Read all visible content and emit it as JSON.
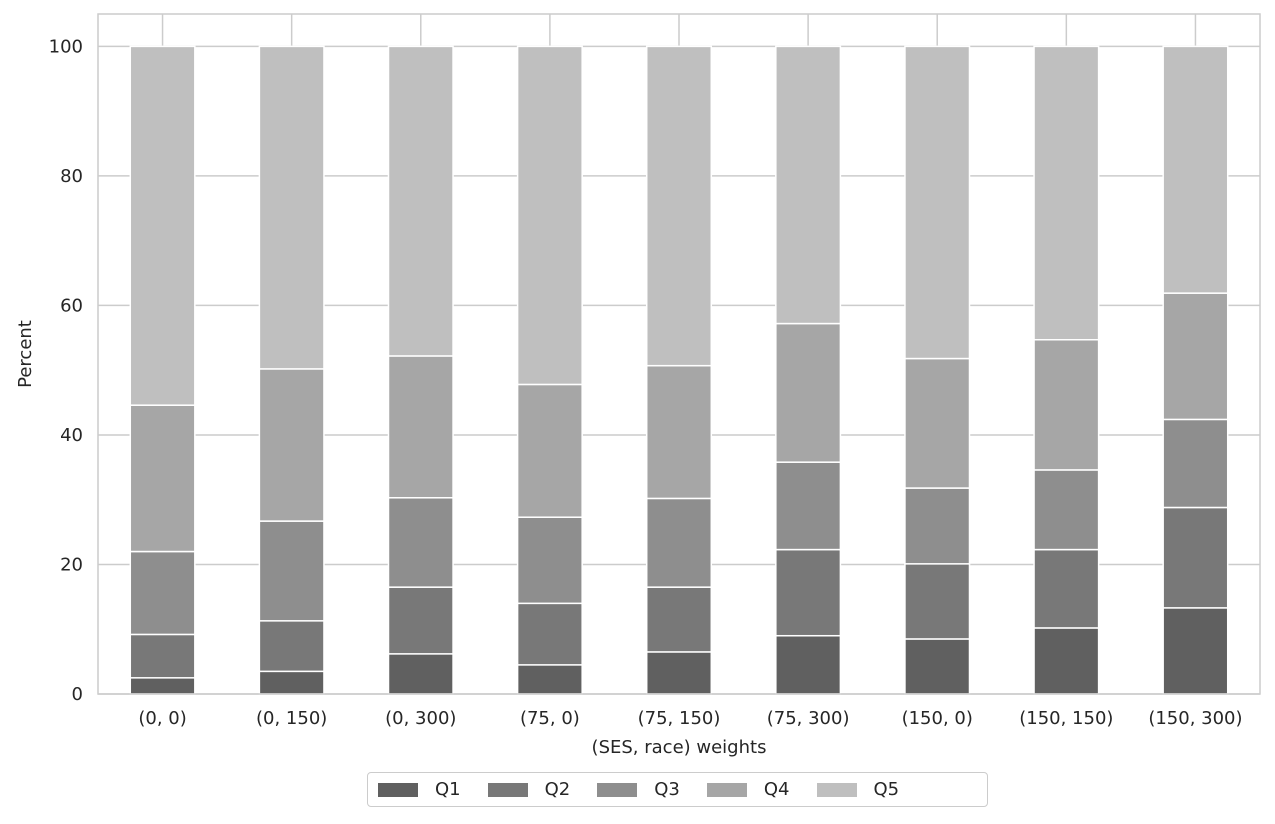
{
  "chart_data": {
    "type": "bar",
    "stacked": true,
    "xlabel": "(SES, race) weights",
    "ylabel": "Percent",
    "ylim": [
      0,
      105
    ],
    "yticks": [
      0,
      20,
      40,
      60,
      80,
      100
    ],
    "grid": true,
    "legend_position": "bottom-center",
    "categories": [
      "(0, 0)",
      "(0, 150)",
      "(0, 300)",
      "(75, 0)",
      "(75, 150)",
      "(75, 300)",
      "(150, 0)",
      "(150, 150)",
      "(150, 300)"
    ],
    "series": [
      {
        "name": "Q1",
        "color": "#606060",
        "values": [
          2.5,
          3.5,
          6.2,
          4.5,
          6.5,
          9.0,
          8.5,
          10.2,
          13.3
        ]
      },
      {
        "name": "Q2",
        "color": "#787878",
        "values": [
          6.7,
          7.8,
          10.3,
          9.5,
          10.0,
          13.3,
          11.6,
          12.1,
          15.5
        ]
      },
      {
        "name": "Q3",
        "color": "#8e8e8e",
        "values": [
          12.8,
          15.4,
          13.8,
          13.3,
          13.7,
          13.5,
          11.7,
          12.3,
          13.6
        ]
      },
      {
        "name": "Q4",
        "color": "#a6a6a6",
        "values": [
          22.6,
          23.5,
          21.9,
          20.5,
          20.5,
          21.4,
          20.0,
          20.1,
          19.5
        ]
      },
      {
        "name": "Q5",
        "color": "#bfbfbf",
        "values": [
          55.4,
          49.8,
          47.8,
          52.2,
          49.3,
          42.8,
          48.2,
          45.3,
          38.1
        ]
      }
    ]
  }
}
